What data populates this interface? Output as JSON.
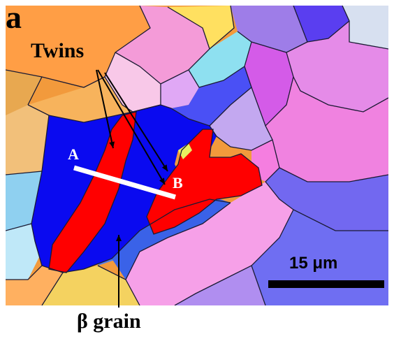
{
  "figure": {
    "panel_letter": "a",
    "twins_label": "Twins",
    "point_a": "A",
    "point_b": "B",
    "scale_label": "15 μm",
    "beta_label": "β grain"
  },
  "colors": {
    "twin": "#ff0000",
    "beta_grain": "#0a0af0",
    "line_segment": "#ffffff",
    "grain_boundary": "#1a1a33",
    "annotation_text": "#000000"
  }
}
